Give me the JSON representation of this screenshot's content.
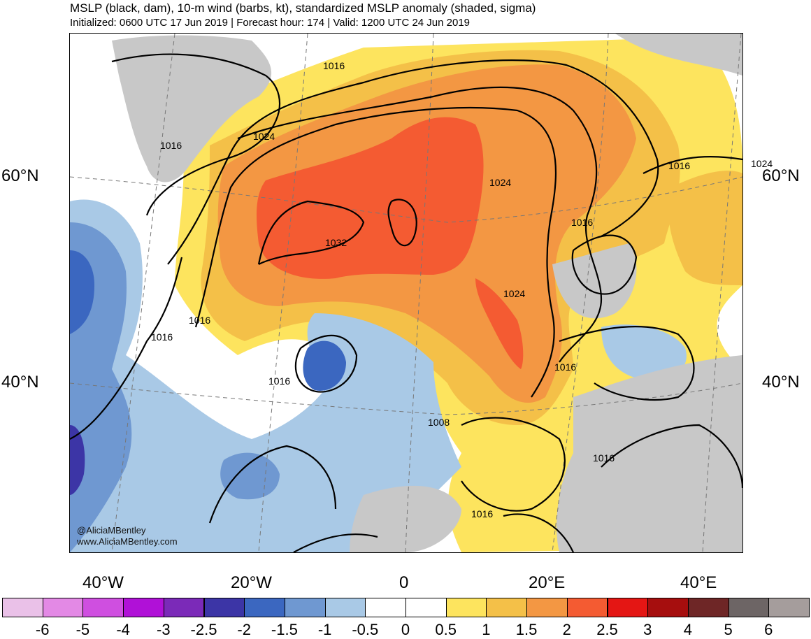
{
  "header": {
    "title": "MSLP (black, dam), 10-m wind (barbs, kt), standardized MSLP anomaly (shaded, sigma)",
    "subtitle": "Initialized: 0600 UTC 17 Jun 2019 | Forecast hour: 174 | Valid: 1200 UTC 24 Jun 2019"
  },
  "map": {
    "lat_labels": [
      "60°N",
      "40°N"
    ],
    "lon_labels": [
      "40°W",
      "20°W",
      "0",
      "20°E",
      "40°E"
    ],
    "isobar_labels": [
      "1016",
      "1016",
      "1024",
      "1032",
      "1024",
      "1016",
      "1024",
      "1016",
      "1024",
      "1016",
      "1016",
      "1016",
      "1016",
      "1008",
      "1016",
      "1016"
    ],
    "credit_handle": "@AliciaMBentley",
    "credit_site": "www.AliciaMBentley.com"
  },
  "colorbar": {
    "colors": [
      "#eac1e8",
      "#e389e5",
      "#cf4fe0",
      "#b011d7",
      "#7b2ab8",
      "#3c35a6",
      "#3b67c0",
      "#6f98d1",
      "#a9c9e6",
      "#ffffff",
      "#ffffff",
      "#fde45e",
      "#f4c048",
      "#f39743",
      "#f45b32",
      "#e41614",
      "#a60e0e",
      "#6e2626",
      "#6d6565",
      "#a59d9c"
    ],
    "tick_labels": [
      "-6",
      "-5",
      "-4",
      "-3",
      "-2.5",
      "-2",
      "-1.5",
      "-1",
      "-0.5",
      "0",
      "0.5",
      "1",
      "1.5",
      "2",
      "2.5",
      "3",
      "4",
      "5",
      "6"
    ]
  }
}
